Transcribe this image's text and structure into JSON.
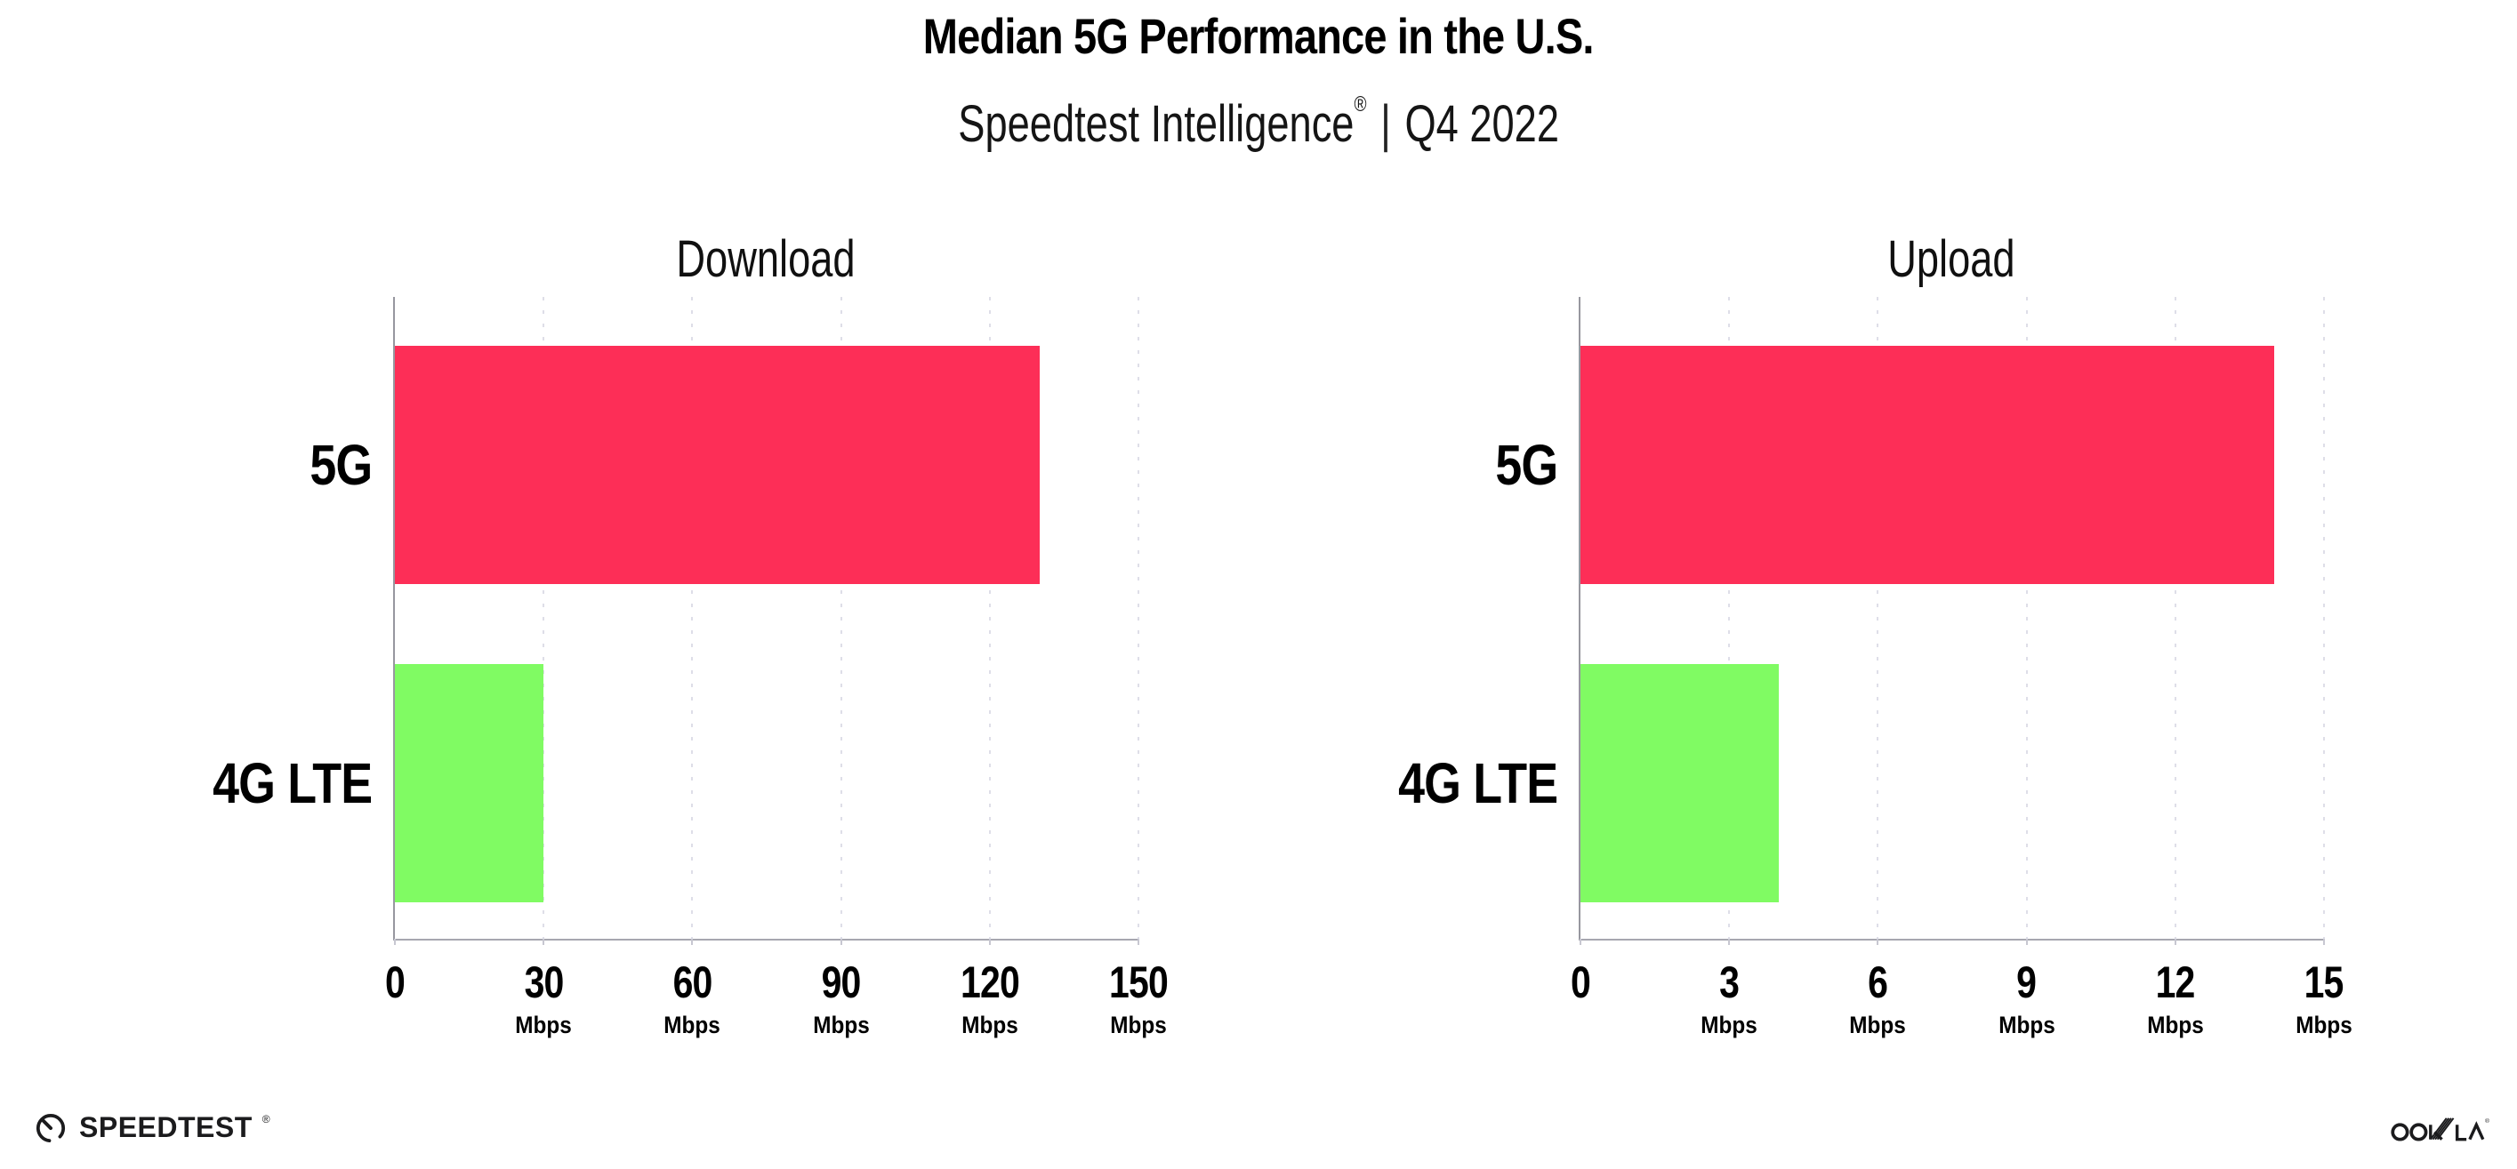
{
  "header": {
    "title": "Median 5G Performance in the U.S.",
    "subtitle_product": "Speedtest Intelligence",
    "subtitle_registered": "®",
    "subtitle_separator": "|",
    "subtitle_period": "Q4 2022"
  },
  "chart_data": [
    {
      "type": "bar",
      "orientation": "horizontal",
      "title": "Download",
      "categories": [
        "5G",
        "4G LTE"
      ],
      "values": [
        130,
        30
      ],
      "units": "Mbps",
      "xlim": [
        0,
        150
      ],
      "xticks": [
        0,
        30,
        60,
        90,
        120,
        150
      ],
      "bar_colors": [
        "#fd2e57",
        "#80fb63"
      ],
      "grid": "dotted-vertical"
    },
    {
      "type": "bar",
      "orientation": "horizontal",
      "title": "Upload",
      "categories": [
        "5G",
        "4G LTE"
      ],
      "values": [
        14,
        4
      ],
      "units": "Mbps",
      "xlim": [
        0,
        15
      ],
      "xticks": [
        0,
        3,
        6,
        9,
        12,
        15
      ],
      "bar_colors": [
        "#fd2e57",
        "#80fb63"
      ],
      "grid": "dotted-vertical"
    }
  ],
  "footer": {
    "speedtest_text": "SPEEDTEST",
    "speedtest_registered": "®",
    "ookla_text": "OOKLA",
    "ookla_registered": "®"
  }
}
